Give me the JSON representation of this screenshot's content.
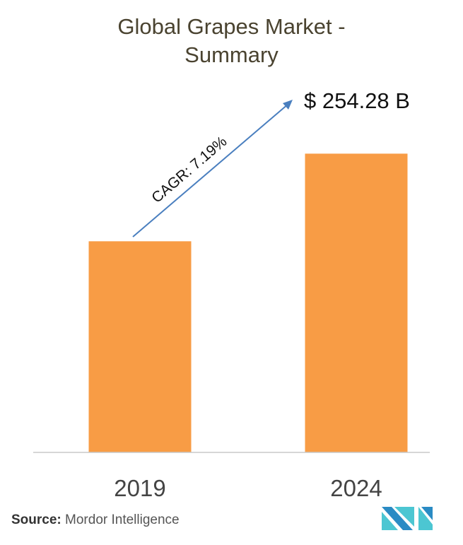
{
  "chart_data": {
    "type": "bar",
    "title": "Global Grapes Market - Summary",
    "title_lines": [
      "Global Grapes Market -",
      "Summary"
    ],
    "categories": [
      "2019",
      "2024"
    ],
    "values": [
      179.7,
      254.28
    ],
    "value_label": "$ 254.28 B",
    "annotation": "CAGR: 7.19%",
    "xlabel": "",
    "ylabel": "",
    "ylim": [
      0,
      290
    ],
    "grid": false,
    "bar_color": "#f89c45",
    "arrow_color": "#4a7fbf",
    "axis_color": "#c8c8c8"
  },
  "source": {
    "label": "Source:",
    "text": "Mordor Intelligence"
  },
  "logo": {
    "colors": [
      "#2a8bc4",
      "#4cc6d2"
    ]
  }
}
